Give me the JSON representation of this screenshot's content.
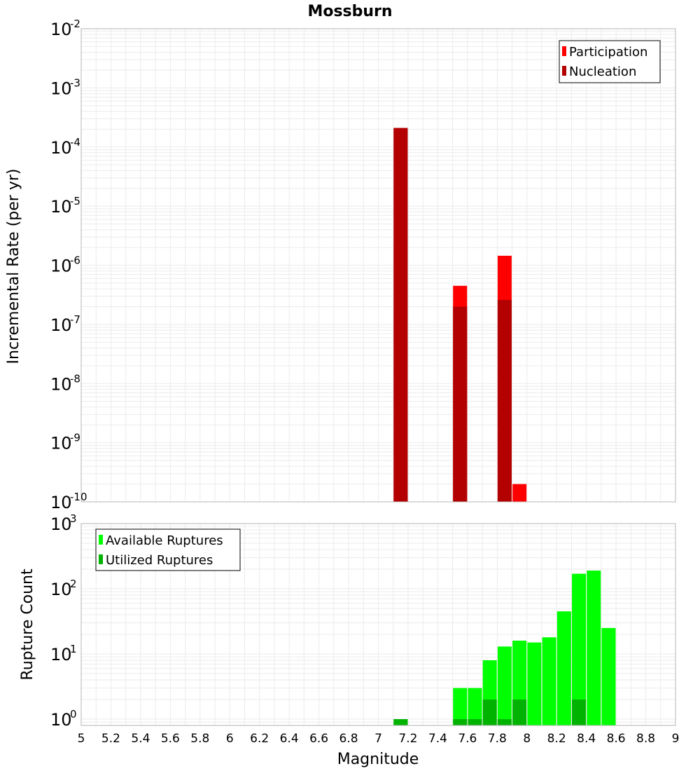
{
  "title": "Mossburn",
  "xlabel": "Magnitude",
  "x_ticks": [
    "5",
    "5.2",
    "5.4",
    "5.6",
    "5.8",
    "6",
    "6.2",
    "6.4",
    "6.6",
    "6.8",
    "7",
    "7.2",
    "7.4",
    "7.6",
    "7.8",
    "8",
    "8.2",
    "8.4",
    "8.6",
    "8.8",
    "9"
  ],
  "colors": {
    "participation": "#ff0000",
    "nucleation": "#b30000",
    "available": "#00ff00",
    "utilized": "#00b300",
    "grid": "#ebebeb",
    "frame": "#b4b4b4"
  },
  "chart_data": [
    {
      "type": "bar",
      "title": "Mossburn",
      "xlabel": "Magnitude",
      "ylabel": "Incremental Rate (per yr)",
      "x_range": [
        5,
        9
      ],
      "y_scale": "log",
      "y_range": [
        1e-10,
        0.01
      ],
      "y_ticks": [
        {
          "base": "10",
          "exp": "-10"
        },
        {
          "base": "10",
          "exp": "-9"
        },
        {
          "base": "10",
          "exp": "-8"
        },
        {
          "base": "10",
          "exp": "-7"
        },
        {
          "base": "10",
          "exp": "-6"
        },
        {
          "base": "10",
          "exp": "-5"
        },
        {
          "base": "10",
          "exp": "-4"
        },
        {
          "base": "10",
          "exp": "-3"
        },
        {
          "base": "10",
          "exp": "-2"
        }
      ],
      "grid": true,
      "legend_position": "top-right",
      "series": [
        {
          "name": "Participation",
          "x": [
            7.15,
            7.55,
            7.85,
            7.95
          ],
          "values": [
            0.00021,
            4.5e-07,
            1.45e-06,
            2e-10
          ]
        },
        {
          "name": "Nucleation",
          "x": [
            7.15,
            7.55,
            7.85
          ],
          "values": [
            0.00021,
            2e-07,
            2.6e-07
          ]
        }
      ]
    },
    {
      "type": "bar",
      "xlabel": "Magnitude",
      "ylabel": "Rupture Count",
      "x_range": [
        5,
        9
      ],
      "y_scale": "log",
      "y_range": [
        0.8,
        1000
      ],
      "y_ticks": [
        {
          "base": "10",
          "exp": "0"
        },
        {
          "base": "10",
          "exp": "1"
        },
        {
          "base": "10",
          "exp": "2"
        },
        {
          "base": "10",
          "exp": "3"
        }
      ],
      "grid": true,
      "legend_position": "top-left",
      "series": [
        {
          "name": "Available Ruptures",
          "x": [
            7.15,
            7.55,
            7.65,
            7.75,
            7.85,
            7.95,
            8.05,
            8.15,
            8.25,
            8.35,
            8.45,
            8.55
          ],
          "values": [
            1,
            3,
            3,
            8,
            13,
            16,
            15,
            18,
            45,
            170,
            190,
            25
          ]
        },
        {
          "name": "Utilized Ruptures",
          "x": [
            7.15,
            7.55,
            7.65,
            7.75,
            7.85,
            7.95,
            8.35
          ],
          "values": [
            1,
            1,
            1,
            2,
            1,
            2,
            2
          ]
        }
      ]
    }
  ]
}
